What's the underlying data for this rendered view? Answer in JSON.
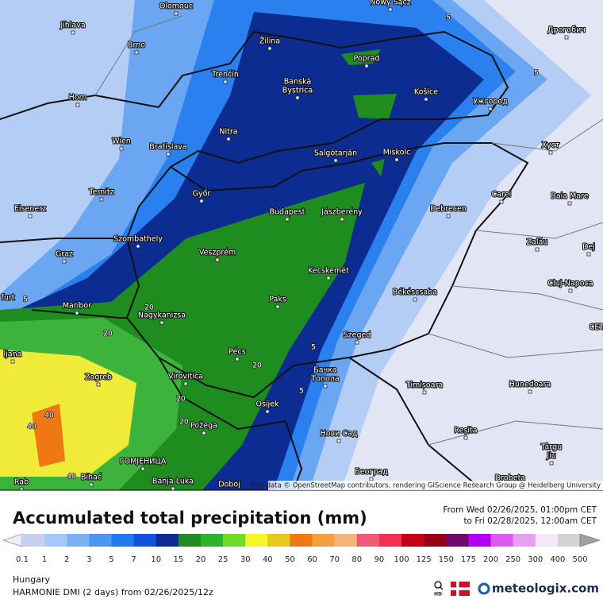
{
  "map": {
    "cities": [
      "Olomouc",
      "Nowy Sącz",
      "Дрогобич",
      "Jihlava",
      "Brno",
      "Žilina",
      "Poprad",
      "Horn",
      "Trenčín",
      "Banská",
      "Bystrica",
      "Košice",
      "Ужгород",
      "Nitra",
      "Wien",
      "Bratislava",
      "Salgótarján",
      "Miskolc",
      "Хуст",
      "Ternitz",
      "Győr",
      "Carei",
      "Baia Mare",
      "Eisenerz",
      "Budapest",
      "Jászberény",
      "Debrecen",
      "Szombathely",
      "Zalău",
      "Dej",
      "Graz",
      "Veszprém",
      "Kecskemét",
      "Cluj-Napoca",
      "furt",
      "Paks",
      "Békéscsaba",
      "Maribor",
      "Nagykanizsa",
      "CET",
      "Szeged",
      "ljana",
      "Pécs",
      "Zagreb",
      "Virovitica",
      "Бачка",
      "Топола",
      "Timișoara",
      "Hunedoara",
      "Osijek",
      "Požega",
      "Reșita",
      "Нови Сад",
      "Târgu",
      "Jiu",
      "ГОМЈЕНИЦА",
      "Bihać",
      "Banja Luka",
      "Doboj",
      "Београд",
      "Drobeta",
      "Rab"
    ],
    "contour_labels": [
      5,
      5,
      5,
      5,
      5,
      20,
      20,
      20,
      20,
      20,
      40,
      40,
      40
    ],
    "attribution": "Map data © OpenStreetMap contributors, rendering GIScience Research Group @ Heidelberg University"
  },
  "header": {
    "title": "Accumulated total precipitation (mm)",
    "from": "From Wed 02/26/2025, 01:00pm CET",
    "to": "to Fri 02/28/2025, 12:00am CET"
  },
  "legend": {
    "labels": [
      0.1,
      1,
      2,
      3,
      5,
      7,
      10,
      15,
      20,
      25,
      30,
      40,
      50,
      60,
      70,
      80,
      90,
      100,
      125,
      150,
      175,
      200,
      250,
      300,
      400,
      500
    ],
    "colors": [
      "#c8d0f0",
      "#a6c8f8",
      "#7ab2f5",
      "#4c98f0",
      "#1e7af0",
      "#1252dc",
      "#0c2c94",
      "#1e8c1e",
      "#2db42d",
      "#6cdc28",
      "#f5f52a",
      "#e6c81e",
      "#f07814",
      "#f5a03c",
      "#f5b478",
      "#f05a78",
      "#f03250",
      "#c80014",
      "#960014",
      "#6e0a6e",
      "#b400f0",
      "#dc5af0",
      "#e6a0f0",
      "#f5e6fa",
      "#d2d2d2"
    ],
    "under_color": "#eceefa",
    "over_color": "#a0a0a0"
  },
  "footer": {
    "region": "Hungary",
    "model": "HARMONIE DMI (2 days) from 02/26/2025/12z",
    "hd": "HD",
    "brand": "meteologix.com"
  }
}
